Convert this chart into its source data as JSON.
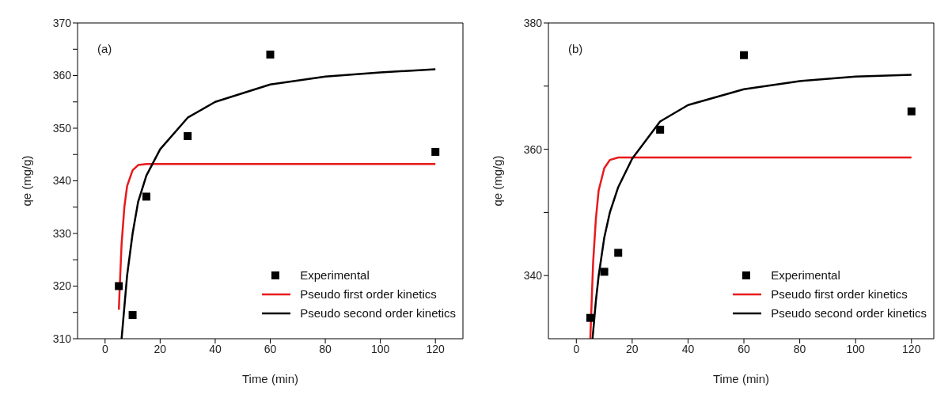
{
  "chart_data": [
    {
      "type": "scatter",
      "annotations": [
        "(a)"
      ],
      "xlabel": "Time (min)",
      "ylabel": "qe (mg/g)",
      "xlim": [
        -10,
        130
      ],
      "xticks": [
        0,
        20,
        40,
        60,
        80,
        100,
        120
      ],
      "ylim": [
        310,
        370
      ],
      "yticks": [
        310,
        {
          "value": 315,
          "label": null
        },
        320,
        {
          "value": 325,
          "label": null
        },
        330,
        {
          "value": 335,
          "label": null
        },
        340,
        {
          "value": 345,
          "label": null
        },
        350,
        {
          "value": 355,
          "label": null
        },
        360,
        {
          "value": 365,
          "label": null
        },
        370
      ],
      "grid": false,
      "legend": "bottom right",
      "series": [
        {
          "name": "Experimental",
          "marker": "square",
          "color": "#000000",
          "x": [
            5,
            10,
            15,
            30,
            60,
            120
          ],
          "values": [
            320,
            314.5,
            337,
            348.5,
            364,
            345.5
          ]
        },
        {
          "name": "Pseudo first order kinetics",
          "type": "line",
          "marker": "none",
          "color": "#e8191b",
          "x": [
            5,
            5.5,
            6,
            7,
            8,
            10,
            12,
            15,
            30,
            60,
            120
          ],
          "values": [
            315.5,
            322,
            328,
            335,
            339,
            342,
            343,
            343.2,
            343.2,
            343.2,
            343.2
          ]
        },
        {
          "name": "Pseudo second order kinetics",
          "type": "line",
          "marker": "none",
          "color": "#000000",
          "x": [
            6,
            8,
            10,
            12,
            15,
            20,
            30,
            40,
            60,
            80,
            100,
            120
          ],
          "values": [
            310,
            322,
            330,
            336,
            341,
            346,
            352,
            355,
            358.3,
            359.8,
            360.6,
            361.2
          ]
        }
      ]
    },
    {
      "type": "scatter",
      "annotations": [
        "(b)"
      ],
      "xlabel": "Time (min)",
      "ylabel": "qe (mg/g)",
      "xlim": [
        -10,
        128
      ],
      "xticks": [
        0,
        20,
        40,
        60,
        80,
        100,
        120
      ],
      "ylim": [
        330,
        380
      ],
      "yticks": [
        340,
        {
          "value": 350,
          "label": null
        },
        360,
        {
          "value": 370,
          "label": null
        },
        380
      ],
      "grid": false,
      "legend": "bottom right",
      "series": [
        {
          "name": "Experimental",
          "marker": "square",
          "color": "#000000",
          "x": [
            5,
            10,
            15,
            30,
            60,
            120
          ],
          "values": [
            333.3,
            340.6,
            343.6,
            363.1,
            374.9,
            366
          ]
        },
        {
          "name": "Pseudo first order kinetics",
          "type": "line",
          "marker": "none",
          "color": "#e8191b",
          "x": [
            5,
            5.5,
            6,
            7,
            8,
            10,
            12,
            15,
            30,
            60,
            120
          ],
          "values": [
            330,
            336,
            342,
            349,
            353.5,
            357,
            358.3,
            358.7,
            358.7,
            358.7,
            358.7
          ]
        },
        {
          "name": "Pseudo second order kinetics",
          "type": "line",
          "marker": "none",
          "color": "#000000",
          "x": [
            5.8,
            7,
            8,
            10,
            12,
            15,
            20,
            30,
            40,
            60,
            80,
            100,
            120
          ],
          "values": [
            330,
            336,
            340,
            346,
            350,
            354,
            358.5,
            364.4,
            367,
            369.5,
            370.8,
            371.5,
            371.8
          ]
        }
      ]
    }
  ]
}
